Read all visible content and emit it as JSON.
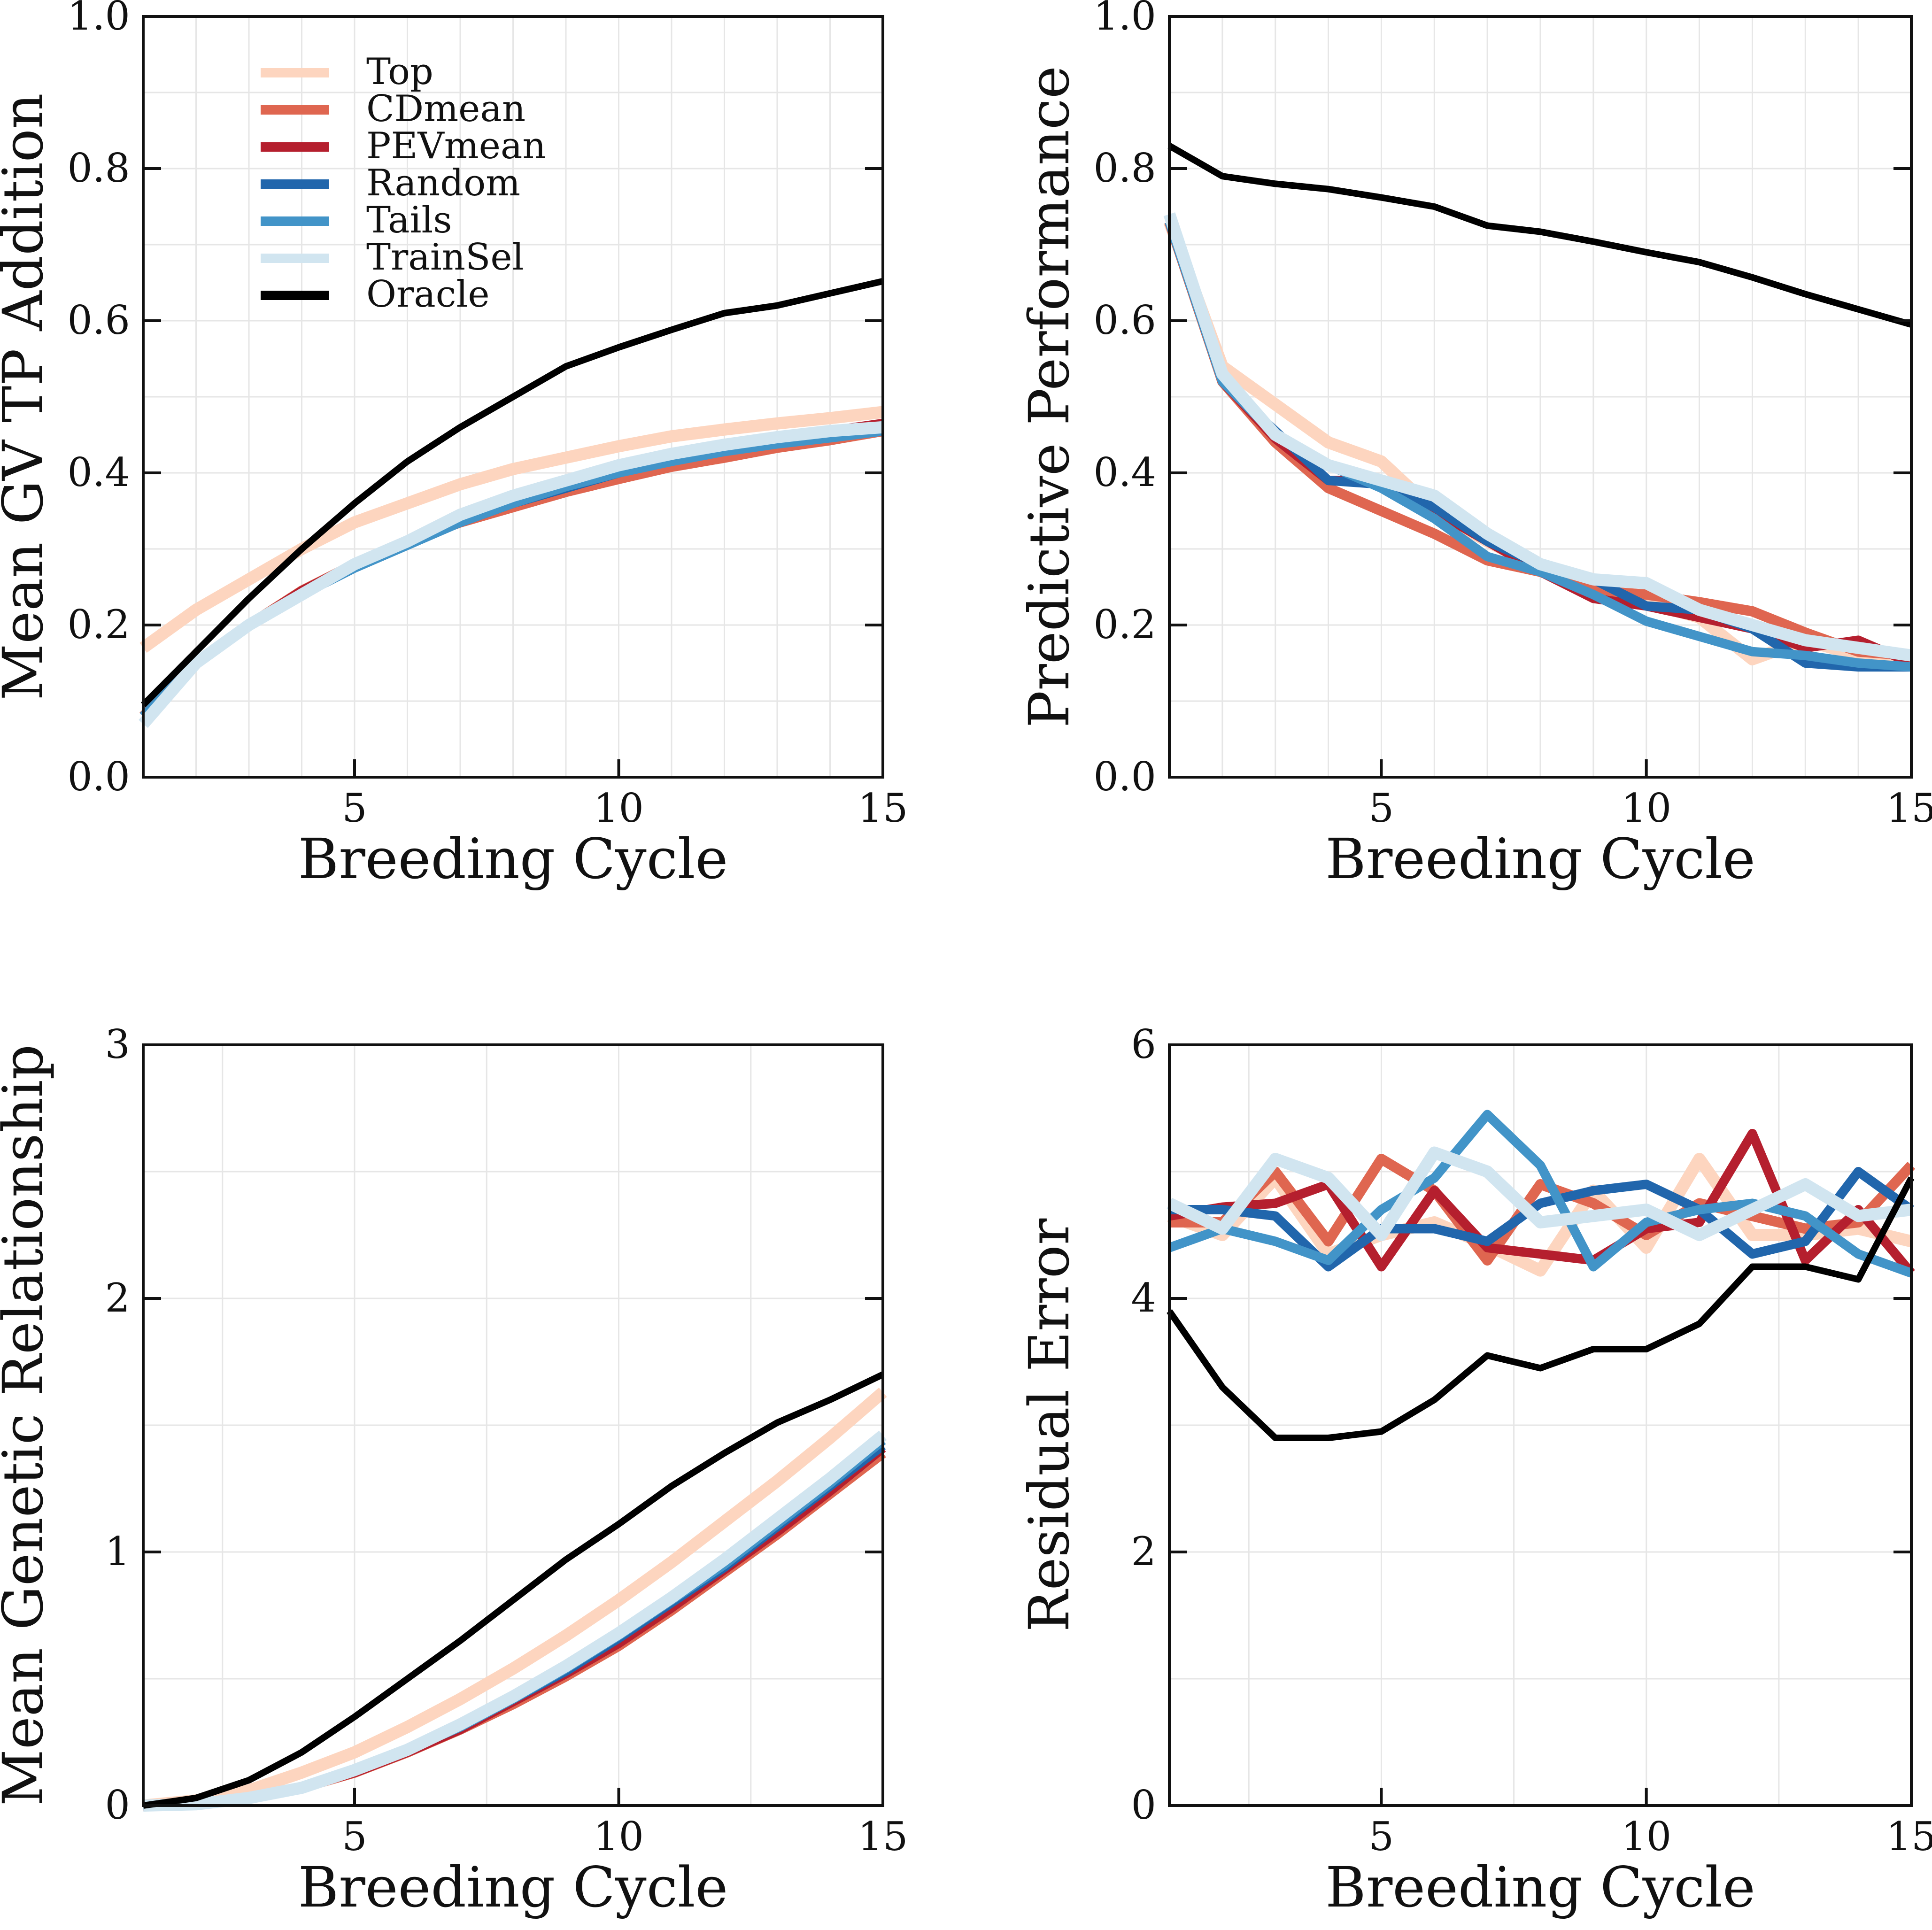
{
  "series_styles": [
    {
      "name": "Top",
      "color": "#fdd5bf"
    },
    {
      "name": "CDmean",
      "color": "#df6650"
    },
    {
      "name": "PEVmean",
      "color": "#b51f2e"
    },
    {
      "name": "Random",
      "color": "#2166ac"
    },
    {
      "name": "Tails",
      "color": "#4294c8"
    },
    {
      "name": "TrainSel",
      "color": "#d1e5f0"
    },
    {
      "name": "Oracle",
      "color": "#000000"
    }
  ],
  "chart_data": [
    {
      "type": "line",
      "position": "top-left",
      "title": "",
      "xlabel": "Breeding Cycle",
      "ylabel": "Mean GV TP Addition",
      "xlim": [
        1,
        15
      ],
      "ylim": [
        0,
        1
      ],
      "xticks": [
        5,
        10,
        15
      ],
      "xtick_labels": [
        "5",
        "10",
        "15"
      ],
      "yticks": [
        0,
        0.2,
        0.4,
        0.6,
        0.8,
        1.0
      ],
      "ytick_labels": [
        "0.0",
        "0.2",
        "0.4",
        "0.6",
        "0.8",
        "1.0"
      ],
      "xgrid": [
        2,
        3,
        4,
        5,
        6,
        7,
        8,
        9,
        10,
        11,
        12,
        13,
        14
      ],
      "ygrid": [
        0.1,
        0.2,
        0.3,
        0.4,
        0.5,
        0.6,
        0.7,
        0.8,
        0.9
      ],
      "grid": true,
      "legend": "top-left",
      "x": [
        1,
        2,
        3,
        4,
        5,
        6,
        7,
        8,
        9,
        10,
        11,
        12,
        13,
        14,
        15
      ],
      "series": [
        {
          "name": "Top",
          "values": [
            0.17,
            0.22,
            0.26,
            0.3,
            0.335,
            0.36,
            0.385,
            0.405,
            0.42,
            0.435,
            0.448,
            0.457,
            0.465,
            0.472,
            0.48
          ]
        },
        {
          "name": "CDmean",
          "values": [
            0.08,
            0.15,
            0.2,
            0.245,
            0.28,
            0.31,
            0.335,
            0.355,
            0.375,
            0.392,
            0.408,
            0.42,
            0.433,
            0.443,
            0.455
          ]
        },
        {
          "name": "PEVmean",
          "values": [
            0.08,
            0.15,
            0.2,
            0.245,
            0.28,
            0.31,
            0.335,
            0.36,
            0.38,
            0.4,
            0.418,
            0.432,
            0.445,
            0.455,
            0.465
          ]
        },
        {
          "name": "Random",
          "values": [
            0.08,
            0.15,
            0.2,
            0.24,
            0.275,
            0.305,
            0.335,
            0.36,
            0.38,
            0.4,
            0.418,
            0.432,
            0.444,
            0.454,
            0.462
          ]
        },
        {
          "name": "Tails",
          "values": [
            0.08,
            0.15,
            0.2,
            0.24,
            0.275,
            0.305,
            0.335,
            0.36,
            0.382,
            0.4,
            0.415,
            0.428,
            0.438,
            0.446,
            0.455
          ]
        },
        {
          "name": "TrainSel",
          "values": [
            0.07,
            0.15,
            0.2,
            0.24,
            0.28,
            0.31,
            0.345,
            0.37,
            0.39,
            0.41,
            0.425,
            0.437,
            0.447,
            0.455,
            0.46
          ]
        },
        {
          "name": "Oracle",
          "values": [
            0.095,
            0.165,
            0.235,
            0.3,
            0.36,
            0.415,
            0.46,
            0.5,
            0.54,
            0.565,
            0.588,
            0.61,
            0.62,
            0.636,
            0.652
          ]
        }
      ]
    },
    {
      "type": "line",
      "position": "top-right",
      "title": "",
      "xlabel": "Breeding Cycle",
      "ylabel": "Predictive Performance",
      "xlim": [
        1,
        15
      ],
      "ylim": [
        0,
        1
      ],
      "xticks": [
        5,
        10,
        15
      ],
      "xtick_labels": [
        "5",
        "10",
        "15"
      ],
      "yticks": [
        0,
        0.2,
        0.4,
        0.6,
        0.8,
        1.0
      ],
      "ytick_labels": [
        "0.0",
        "0.2",
        "0.4",
        "0.6",
        "0.8",
        "1.0"
      ],
      "xgrid": [
        2,
        3,
        4,
        5,
        6,
        7,
        8,
        9,
        10,
        11,
        12,
        13,
        14
      ],
      "ygrid": [
        0.1,
        0.2,
        0.3,
        0.4,
        0.5,
        0.6,
        0.7,
        0.8,
        0.9
      ],
      "grid": true,
      "legend": "none",
      "x": [
        1,
        2,
        3,
        4,
        5,
        6,
        7,
        8,
        9,
        10,
        11,
        12,
        13,
        14,
        15
      ],
      "series": [
        {
          "name": "Top",
          "values": [
            0.73,
            0.54,
            0.49,
            0.44,
            0.415,
            0.35,
            0.31,
            0.275,
            0.25,
            0.23,
            0.21,
            0.155,
            0.18,
            0.16,
            0.155
          ]
        },
        {
          "name": "CDmean",
          "values": [
            0.73,
            0.52,
            0.44,
            0.38,
            0.35,
            0.32,
            0.285,
            0.27,
            0.245,
            0.24,
            0.23,
            0.218,
            0.19,
            0.165,
            0.16
          ]
        },
        {
          "name": "PEVmean",
          "values": [
            0.73,
            0.52,
            0.445,
            0.39,
            0.39,
            0.35,
            0.31,
            0.27,
            0.235,
            0.225,
            0.21,
            0.195,
            0.17,
            0.18,
            0.15
          ]
        },
        {
          "name": "Random",
          "values": [
            0.73,
            0.52,
            0.455,
            0.39,
            0.385,
            0.355,
            0.31,
            0.28,
            0.26,
            0.225,
            0.22,
            0.195,
            0.15,
            0.145,
            0.145
          ]
        },
        {
          "name": "Tails",
          "values": [
            0.73,
            0.52,
            0.45,
            0.41,
            0.38,
            0.34,
            0.29,
            0.27,
            0.24,
            0.205,
            0.185,
            0.165,
            0.16,
            0.15,
            0.145
          ]
        },
        {
          "name": "TrainSel",
          "values": [
            0.74,
            0.53,
            0.45,
            0.41,
            0.39,
            0.37,
            0.32,
            0.28,
            0.26,
            0.255,
            0.22,
            0.2,
            0.18,
            0.17,
            0.16
          ]
        },
        {
          "name": "Oracle",
          "values": [
            0.83,
            0.79,
            0.78,
            0.773,
            0.762,
            0.75,
            0.725,
            0.717,
            0.704,
            0.69,
            0.677,
            0.657,
            0.635,
            0.615,
            0.595
          ]
        }
      ]
    },
    {
      "type": "line",
      "position": "bottom-left",
      "title": "",
      "xlabel": "Breeding Cycle",
      "ylabel": "Mean Genetic Relationship",
      "xlim": [
        1,
        15
      ],
      "ylim": [
        0,
        3
      ],
      "xticks": [
        5,
        10,
        15
      ],
      "xtick_labels": [
        "5",
        "10",
        "15"
      ],
      "yticks": [
        0,
        1,
        2,
        3
      ],
      "ytick_labels": [
        "0",
        "1",
        "2",
        "3"
      ],
      "xgrid": [
        2.5,
        5,
        7.5,
        10,
        12.5
      ],
      "ygrid": [
        0.5,
        1,
        1.5,
        2,
        2.5
      ],
      "grid": true,
      "legend": "none",
      "x": [
        1,
        2,
        3,
        4,
        5,
        6,
        7,
        8,
        9,
        10,
        11,
        12,
        13,
        14,
        15
      ],
      "series": [
        {
          "name": "Top",
          "values": [
            0,
            0.02,
            0.06,
            0.13,
            0.21,
            0.31,
            0.42,
            0.54,
            0.67,
            0.81,
            0.96,
            1.12,
            1.28,
            1.45,
            1.63
          ]
        },
        {
          "name": "CDmean",
          "values": [
            0,
            0.005,
            0.03,
            0.07,
            0.13,
            0.21,
            0.3,
            0.4,
            0.51,
            0.63,
            0.77,
            0.92,
            1.07,
            1.23,
            1.39
          ]
        },
        {
          "name": "PEVmean",
          "values": [
            0,
            0.005,
            0.03,
            0.07,
            0.13,
            0.21,
            0.3,
            0.41,
            0.52,
            0.64,
            0.78,
            0.93,
            1.08,
            1.24,
            1.41
          ]
        },
        {
          "name": "Random",
          "values": [
            0,
            0.005,
            0.03,
            0.07,
            0.14,
            0.22,
            0.31,
            0.42,
            0.53,
            0.66,
            0.8,
            0.94,
            1.1,
            1.26,
            1.42
          ]
        },
        {
          "name": "Tails",
          "values": [
            0,
            0.005,
            0.03,
            0.07,
            0.14,
            0.22,
            0.31,
            0.42,
            0.54,
            0.67,
            0.81,
            0.95,
            1.11,
            1.27,
            1.44
          ]
        },
        {
          "name": "TrainSel",
          "values": [
            0,
            0.005,
            0.03,
            0.07,
            0.14,
            0.22,
            0.32,
            0.43,
            0.55,
            0.68,
            0.82,
            0.97,
            1.13,
            1.29,
            1.46
          ]
        },
        {
          "name": "Oracle",
          "values": [
            0,
            0.03,
            0.1,
            0.21,
            0.35,
            0.5,
            0.65,
            0.81,
            0.97,
            1.11,
            1.26,
            1.39,
            1.51,
            1.6,
            1.7
          ]
        }
      ]
    },
    {
      "type": "line",
      "position": "bottom-right",
      "title": "",
      "xlabel": "Breeding Cycle",
      "ylabel": "Residual Error",
      "xlim": [
        1,
        15
      ],
      "ylim": [
        0,
        6
      ],
      "xticks": [
        5,
        10,
        15
      ],
      "xtick_labels": [
        "5",
        "10",
        "15"
      ],
      "yticks": [
        0,
        2,
        4,
        6
      ],
      "ytick_labels": [
        "0",
        "2",
        "4",
        "6"
      ],
      "xgrid": [
        2.5,
        5,
        7.5,
        10,
        12.5
      ],
      "ygrid": [
        1,
        2,
        3,
        4,
        5
      ],
      "grid": true,
      "legend": "none",
      "x": [
        1,
        2,
        3,
        4,
        5,
        6,
        7,
        8,
        9,
        10,
        11,
        12,
        13,
        14,
        15
      ],
      "series": [
        {
          "name": "Top",
          "values": [
            4.65,
            4.5,
            4.95,
            4.35,
            4.5,
            4.6,
            4.42,
            4.22,
            4.85,
            4.4,
            5.1,
            4.5,
            4.5,
            4.55,
            4.45
          ]
        },
        {
          "name": "CDmean",
          "values": [
            4.6,
            4.6,
            5.0,
            4.45,
            5.1,
            4.85,
            4.3,
            4.9,
            4.75,
            4.5,
            4.75,
            4.65,
            4.55,
            4.6,
            5.05
          ]
        },
        {
          "name": "PEVmean",
          "values": [
            4.65,
            4.72,
            4.75,
            4.9,
            4.25,
            4.85,
            4.4,
            4.35,
            4.3,
            4.55,
            4.6,
            5.3,
            4.3,
            4.7,
            4.2
          ]
        },
        {
          "name": "Random",
          "values": [
            4.7,
            4.7,
            4.65,
            4.25,
            4.55,
            4.55,
            4.45,
            4.75,
            4.85,
            4.9,
            4.7,
            4.35,
            4.45,
            5.0,
            4.7
          ]
        },
        {
          "name": "Tails",
          "values": [
            4.4,
            4.55,
            4.45,
            4.3,
            4.7,
            4.95,
            5.45,
            5.05,
            4.25,
            4.6,
            4.7,
            4.75,
            4.65,
            4.35,
            4.2
          ]
        },
        {
          "name": "TrainSel",
          "values": [
            4.75,
            4.55,
            5.1,
            4.95,
            4.5,
            5.15,
            5.0,
            4.6,
            4.65,
            4.7,
            4.5,
            4.7,
            4.9,
            4.65,
            4.7
          ]
        },
        {
          "name": "Oracle",
          "values": [
            3.9,
            3.3,
            2.9,
            2.9,
            2.95,
            3.2,
            3.55,
            3.45,
            3.6,
            3.6,
            3.8,
            4.25,
            4.25,
            4.15,
            4.95
          ]
        }
      ]
    }
  ]
}
